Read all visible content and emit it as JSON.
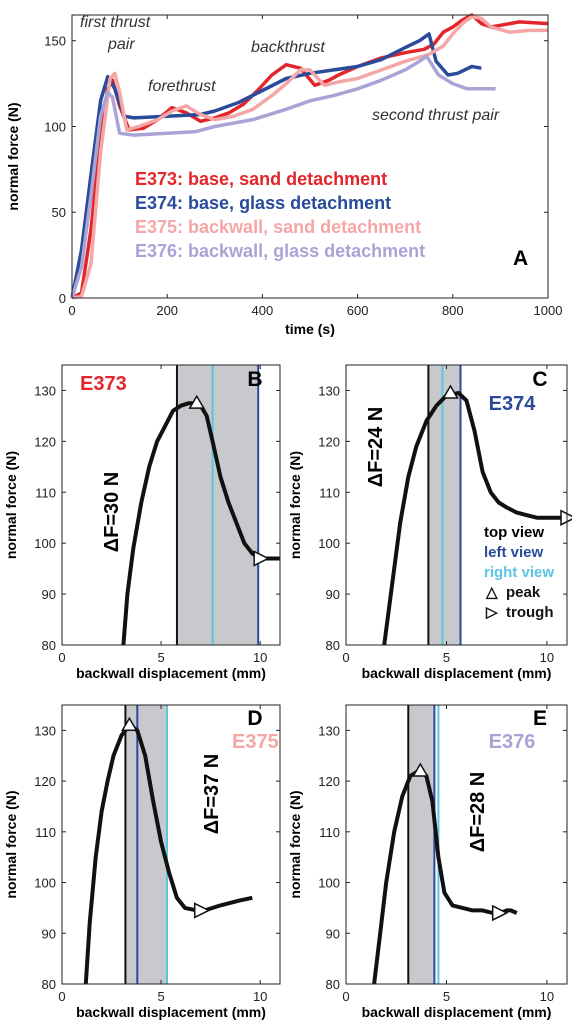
{
  "chart_data": [
    {
      "panel": "A",
      "type": "line",
      "xlabel": "time (s)",
      "ylabel": "normal force (N)",
      "xlim": [
        0,
        1000
      ],
      "ylim": [
        0,
        165
      ],
      "xticks": [
        0,
        200,
        400,
        600,
        800,
        1000
      ],
      "yticks": [
        0,
        50,
        100,
        150
      ],
      "legend_position": "center",
      "series": [
        {
          "name": "E373: base, sand detachment",
          "color": "#e2262b",
          "x": [
            0,
            20,
            40,
            60,
            75,
            85,
            100,
            120,
            150,
            180,
            210,
            240,
            270,
            300,
            330,
            360,
            390,
            420,
            450,
            480,
            510,
            540,
            560,
            600,
            650,
            700,
            740,
            760,
            780,
            800,
            820,
            840,
            860,
            880,
            900,
            940,
            1000
          ],
          "y": [
            0,
            3,
            40,
            95,
            122,
            127,
            112,
            98,
            99,
            104,
            111,
            108,
            103,
            105,
            108,
            113,
            121,
            130,
            136,
            134,
            124,
            127,
            130,
            135,
            140,
            143,
            145,
            148,
            155,
            158,
            162,
            165,
            160,
            158,
            159,
            161,
            160
          ]
        },
        {
          "name": "E374: base, glass detachment",
          "color": "#2a4b9b",
          "x": [
            0,
            20,
            40,
            60,
            75,
            90,
            110,
            130,
            200,
            270,
            300,
            350,
            400,
            450,
            500,
            550,
            600,
            650,
            700,
            730,
            750,
            765,
            790,
            810,
            840,
            860
          ],
          "y": [
            0,
            28,
            72,
            115,
            129,
            122,
            106,
            105,
            106,
            107,
            109,
            114,
            121,
            128,
            131,
            133,
            135,
            139,
            146,
            150,
            154,
            138,
            130,
            131,
            135,
            134
          ]
        },
        {
          "name": "E375: backwall, sand detachment",
          "color": "#f5a6a6",
          "x": [
            0,
            20,
            40,
            60,
            80,
            90,
            100,
            115,
            140,
            180,
            210,
            240,
            270,
            300,
            340,
            380,
            420,
            450,
            480,
            500,
            530,
            560,
            600,
            650,
            700,
            750,
            780,
            800,
            820,
            840,
            860,
            880,
            920,
            960,
            1000
          ],
          "y": [
            0,
            1,
            20,
            85,
            128,
            131,
            120,
            98,
            100,
            104,
            109,
            112,
            107,
            104,
            106,
            110,
            118,
            125,
            133,
            133,
            124,
            126,
            128,
            133,
            138,
            142,
            147,
            154,
            160,
            164,
            163,
            158,
            155,
            156,
            156
          ]
        },
        {
          "name": "E376: backwall, glass detachment",
          "color": "#a8a4d6",
          "x": [
            0,
            20,
            40,
            60,
            75,
            85,
            100,
            130,
            200,
            260,
            300,
            380,
            450,
            500,
            550,
            600,
            650,
            700,
            730,
            745,
            770,
            800,
            830,
            860,
            890
          ],
          "y": [
            0,
            18,
            60,
            106,
            120,
            117,
            96,
            95,
            96,
            97,
            100,
            104,
            110,
            115,
            118,
            122,
            127,
            133,
            138,
            141,
            130,
            125,
            122,
            122,
            122
          ]
        }
      ],
      "annotations": [
        "first thrust",
        "pair",
        "forethrust",
        "backthrust",
        "second thrust pair"
      ]
    },
    {
      "panel": "B",
      "experiment": "E373",
      "exp_color": "#e2262b",
      "type": "line",
      "xlabel": "backwall displacement (mm)",
      "ylabel": "normal force (N)",
      "xlim": [
        0,
        11
      ],
      "ylim": [
        80,
        135
      ],
      "xticks": [
        0,
        5,
        10
      ],
      "yticks": [
        80,
        90,
        100,
        110,
        120,
        130
      ],
      "x": [
        3.1,
        3.3,
        3.6,
        4.0,
        4.4,
        4.8,
        5.2,
        5.6,
        6.0,
        6.4,
        6.8,
        7.0,
        7.3,
        7.6,
        8.0,
        8.4,
        8.8,
        9.2,
        9.6,
        10.0,
        10.4,
        11.0
      ],
      "y": [
        80,
        90,
        99,
        108,
        115,
        120,
        123,
        126,
        127,
        127.5,
        127.5,
        127,
        125,
        120,
        113,
        108,
        104,
        100,
        98,
        97,
        97,
        97
      ],
      "band": [
        5.8,
        9.9
      ],
      "lines": {
        "top": 5.8,
        "right": 7.6,
        "left": 9.9
      },
      "peak": [
        6.8,
        127.5
      ],
      "trough": [
        10.0,
        97
      ],
      "delta_label": "ΔF=30 N"
    },
    {
      "panel": "C",
      "experiment": "E374",
      "exp_color": "#2a4b9b",
      "type": "line",
      "xlabel": "backwall displacement (mm)",
      "ylabel": "normal force (N)",
      "xlim": [
        0,
        11
      ],
      "ylim": [
        80,
        135
      ],
      "xticks": [
        0,
        5,
        10
      ],
      "yticks": [
        80,
        90,
        100,
        110,
        120,
        130
      ],
      "x": [
        1.9,
        2.3,
        2.7,
        3.1,
        3.5,
        4.0,
        4.5,
        5.0,
        5.6,
        6.0,
        6.4,
        6.8,
        7.2,
        7.6,
        8.0,
        8.5,
        9.0,
        9.5,
        10.0,
        10.5,
        11.0
      ],
      "y": [
        80,
        92,
        104,
        113,
        119,
        124,
        127,
        129,
        129.5,
        128,
        122,
        114,
        110,
        108,
        107,
        106,
        105.5,
        105,
        105,
        105,
        105
      ],
      "band": [
        4.1,
        5.7
      ],
      "lines": {
        "top": 4.1,
        "right": 4.8,
        "left": 5.7
      },
      "peak": [
        5.2,
        129.5
      ],
      "trough": [
        11.0,
        105
      ],
      "delta_label": "ΔF=24 N",
      "key": {
        "top": {
          "label": "top view",
          "color": "#000000"
        },
        "left": {
          "label": "left view",
          "color": "#2a4b9b"
        },
        "right": {
          "label": "right view",
          "color": "#5cc5e3"
        },
        "peak": {
          "symbol": "△",
          "label": "peak"
        },
        "trough": {
          "symbol": "▷",
          "label": "trough"
        }
      }
    },
    {
      "panel": "D",
      "experiment": "E375",
      "exp_color": "#f5a6a6",
      "type": "line",
      "xlabel": "backwall displacement (mm)",
      "ylabel": "normal force (N)",
      "xlim": [
        0,
        11
      ],
      "ylim": [
        80,
        135
      ],
      "xticks": [
        0,
        5,
        10
      ],
      "yticks": [
        80,
        90,
        100,
        110,
        120,
        130
      ],
      "x": [
        1.2,
        1.4,
        1.7,
        2.0,
        2.3,
        2.6,
        3.0,
        3.4,
        3.8,
        4.2,
        4.6,
        5.0,
        5.4,
        5.8,
        6.2,
        6.8,
        7.2,
        7.6,
        8.0,
        8.5,
        9.0,
        9.6
      ],
      "y": [
        80,
        92,
        105,
        114,
        120,
        125,
        129,
        131,
        130,
        125,
        116,
        108,
        102,
        97,
        95,
        94.5,
        94.5,
        95,
        95.5,
        96,
        96.5,
        97
      ],
      "band": [
        3.2,
        5.3
      ],
      "lines": {
        "top": 3.2,
        "left": 3.8,
        "right": 5.3
      },
      "peak": [
        3.4,
        131
      ],
      "trough": [
        7.0,
        94.5
      ],
      "delta_label": "ΔF=37 N"
    },
    {
      "panel": "E",
      "experiment": "E376",
      "exp_color": "#a8a4d6",
      "type": "line",
      "xlabel": "backwall displacement (mm)",
      "ylabel": "normal force (N)",
      "xlim": [
        0,
        11
      ],
      "ylim": [
        80,
        135
      ],
      "xticks": [
        0,
        5,
        10
      ],
      "yticks": [
        80,
        90,
        100,
        110,
        120,
        130
      ],
      "x": [
        1.4,
        1.7,
        2.0,
        2.4,
        2.8,
        3.2,
        3.6,
        4.0,
        4.3,
        4.6,
        4.9,
        5.3,
        5.8,
        6.3,
        6.8,
        7.3,
        7.7,
        8.0,
        8.2,
        8.5
      ],
      "y": [
        80,
        90,
        100,
        110,
        117,
        121,
        122,
        121,
        116,
        105,
        98,
        95.5,
        95,
        94.5,
        94.5,
        94,
        94,
        94.5,
        94.5,
        94
      ],
      "band": [
        3.1,
        4.4
      ],
      "lines": {
        "top": 3.1,
        "left": 4.4,
        "right": 4.6
      },
      "peak": [
        3.7,
        122
      ],
      "trough": [
        7.6,
        94
      ],
      "delta_label": "ΔF=28 N"
    }
  ]
}
